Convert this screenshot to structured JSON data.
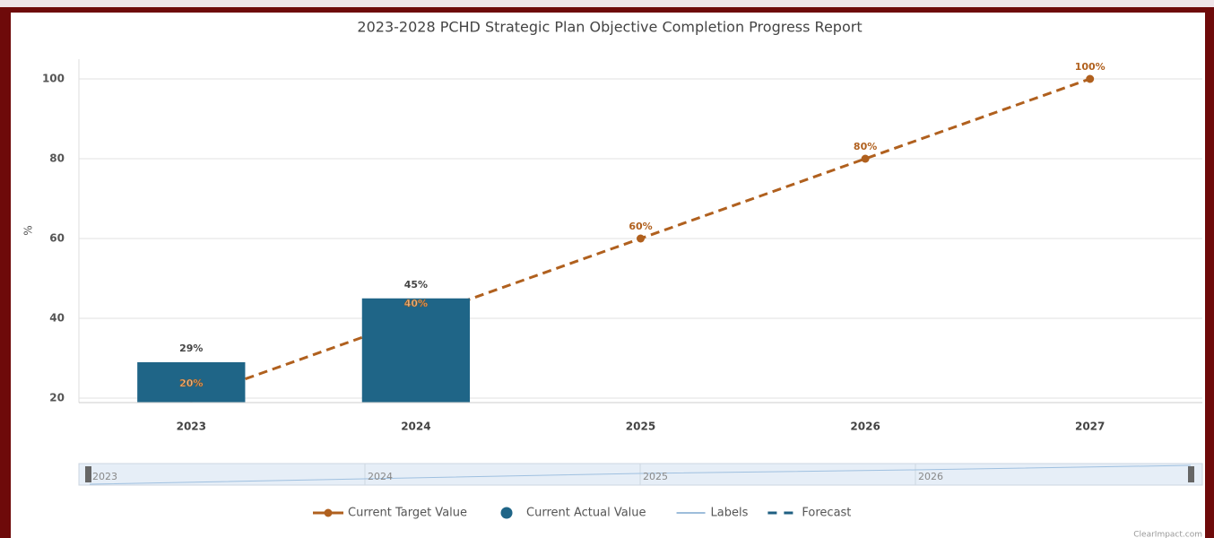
{
  "chart_data": {
    "type": "bar",
    "title": "2023-2028 PCHD Strategic Plan Objective Completion Progress Report",
    "y_label": "%",
    "categories": [
      "2023",
      "2024",
      "2025",
      "2026",
      "2027"
    ],
    "series": [
      {
        "name": "Current Actual Value",
        "type": "bar",
        "color": "#1f6587",
        "values": [
          29,
          45,
          null,
          null,
          null
        ],
        "value_labels": [
          "29%",
          "45%",
          null,
          null,
          null
        ]
      },
      {
        "name": "Current Target Value",
        "type": "line",
        "color": "#b0601e",
        "dashed": true,
        "values": [
          20,
          40,
          60,
          80,
          100
        ],
        "value_labels": [
          "20%",
          "40%",
          "60%",
          "80%",
          "100%"
        ]
      }
    ],
    "legend_extra": [
      {
        "name": "Labels",
        "color": "#7fa7cf",
        "style": "solid"
      },
      {
        "name": "Forecast",
        "color": "#1f5f82",
        "style": "dashed"
      }
    ],
    "ylim": [
      19,
      105
    ],
    "yticks": [
      20,
      40,
      60,
      80,
      100
    ],
    "grid": true,
    "credit": "ClearImpact.com"
  }
}
